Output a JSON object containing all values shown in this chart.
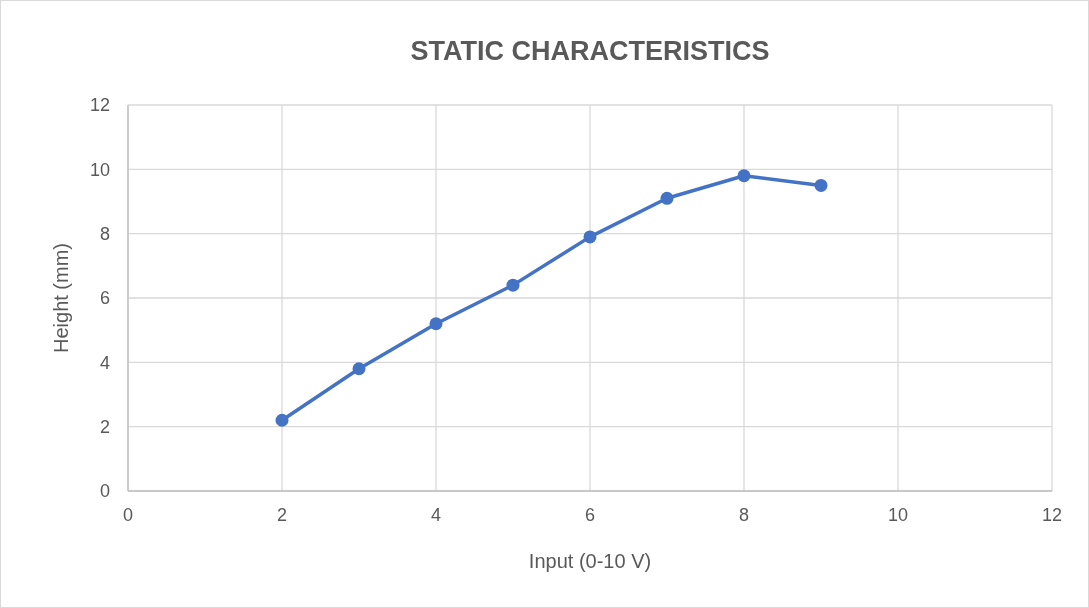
{
  "chart_data": {
    "type": "line",
    "title": "STATIC CHARACTERISTICS",
    "xlabel": "Input (0-10 V)",
    "ylabel": "Height (mm)",
    "x": [
      2,
      3,
      4,
      5,
      6,
      7,
      8,
      9
    ],
    "series": [
      {
        "color": "#4472c4",
        "values": [
          2.2,
          3.8,
          5.2,
          6.4,
          7.9,
          9.1,
          9.8,
          9.5
        ]
      }
    ],
    "xlim": [
      0,
      12
    ],
    "xticks": [
      0,
      2,
      4,
      6,
      8,
      10,
      12
    ],
    "ylim": [
      0,
      12
    ],
    "yticks": [
      0,
      2,
      4,
      6,
      8,
      10,
      12
    ],
    "grid": true,
    "marker": "circle",
    "line_style": "solid"
  }
}
